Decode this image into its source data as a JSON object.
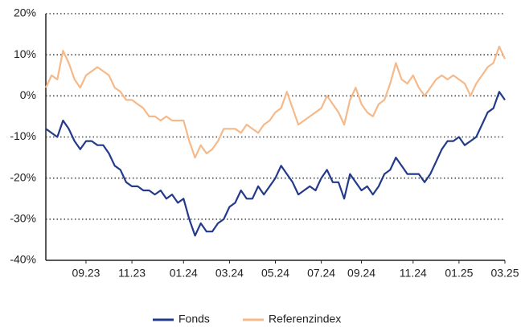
{
  "chart_data": {
    "type": "line",
    "categories": [
      null,
      null,
      null,
      null,
      null,
      null,
      null,
      "09.23",
      null,
      null,
      null,
      null,
      null,
      null,
      null,
      "11.23",
      null,
      null,
      null,
      null,
      null,
      null,
      null,
      null,
      "01.24",
      null,
      null,
      null,
      null,
      null,
      null,
      null,
      "03.24",
      null,
      null,
      null,
      null,
      null,
      null,
      null,
      "05.24",
      null,
      null,
      null,
      null,
      null,
      null,
      null,
      "07.24",
      null,
      null,
      null,
      null,
      null,
      null,
      "09.24",
      null,
      null,
      null,
      null,
      null,
      null,
      null,
      null,
      "11.24",
      null,
      null,
      null,
      null,
      null,
      null,
      null,
      "01.25",
      null,
      null,
      null,
      null,
      null,
      null,
      null,
      "03.25"
    ],
    "series": [
      {
        "name": "Fonds",
        "color": "#233a8b",
        "values": [
          -8,
          -9,
          -10,
          -6,
          -8,
          -11,
          -13,
          -11,
          -11,
          -12,
          -12,
          -14,
          -17,
          -18,
          -21,
          -22,
          -22,
          -23,
          -23,
          -24,
          -23,
          -25,
          -24,
          -26,
          -25,
          -30,
          -34,
          -31,
          -33,
          -33,
          -31,
          -30,
          -27,
          -26,
          -23,
          -25,
          -25,
          -22,
          -24,
          -22,
          -20,
          -17,
          -19,
          -21,
          -24,
          -23,
          -22,
          -23,
          -20,
          -18,
          -21,
          -21,
          -25,
          -19,
          -21,
          -23,
          -22,
          -24,
          -22,
          -19,
          -18,
          -15,
          -17,
          -19,
          -19,
          -19,
          -21,
          -19,
          -16,
          -13,
          -11,
          -11,
          -10,
          -12,
          -11,
          -10,
          -7,
          -4,
          -3,
          1,
          -1
        ]
      },
      {
        "name": "Referenzindex",
        "color": "#f5b98a",
        "values": [
          2,
          5,
          4,
          11,
          8,
          4,
          2,
          5,
          6,
          7,
          6,
          5,
          2,
          1,
          -1,
          -1,
          -2,
          -3,
          -5,
          -5,
          -6,
          -5,
          -6,
          -6,
          -6,
          -11,
          -15,
          -12,
          -14,
          -13,
          -11,
          -8,
          -8,
          -8,
          -9,
          -7,
          -8,
          -9,
          -7,
          -6,
          -4,
          -3,
          1,
          -3,
          -7,
          -6,
          -5,
          -4,
          -3,
          0,
          -2,
          -4,
          -7,
          -1,
          2,
          -2,
          -4,
          -5,
          -2,
          -1,
          3,
          8,
          4,
          3,
          5,
          2,
          0,
          2,
          4,
          5,
          4,
          5,
          4,
          3,
          0,
          3,
          5,
          7,
          8,
          12,
          9
        ]
      }
    ],
    "ylim": [
      -40,
      20
    ],
    "yticks": [
      {
        "value": -40,
        "label": "-40%"
      },
      {
        "value": -30,
        "label": "-30%"
      },
      {
        "value": -20,
        "label": "-20%"
      },
      {
        "value": -10,
        "label": "-10%"
      },
      {
        "value": 0,
        "label": "0%"
      },
      {
        "value": 10,
        "label": "10%"
      },
      {
        "value": 20,
        "label": "20%"
      }
    ],
    "grid": true,
    "legend": "bottom"
  }
}
